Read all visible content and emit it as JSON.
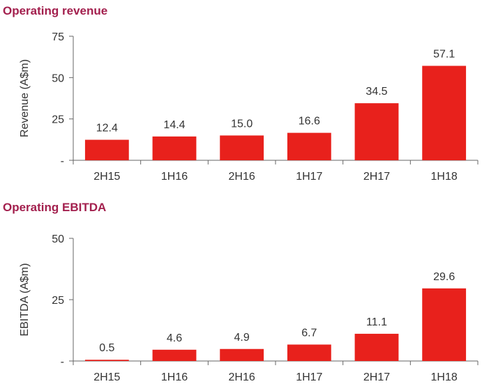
{
  "chart_data": [
    {
      "type": "bar",
      "title": "Operating revenue",
      "ylabel": "Revenue (A$m)",
      "xlabel": "",
      "categories": [
        "2H15",
        "1H16",
        "2H16",
        "1H17",
        "2H17",
        "1H18"
      ],
      "values": [
        12.4,
        14.4,
        15.0,
        16.6,
        34.5,
        57.1
      ],
      "value_labels": [
        "12.4",
        "14.4",
        "15.0",
        "16.6",
        "34.5",
        "57.1"
      ],
      "ylim": [
        0,
        75
      ],
      "yticks": [
        0,
        25,
        50,
        75
      ],
      "ytick_labels": [
        "-",
        "25",
        "50",
        "75"
      ],
      "bar_color": "#e8211c",
      "grid": false
    },
    {
      "type": "bar",
      "title": "Operating EBITDA",
      "ylabel": "EBITDA (A$m)",
      "xlabel": "",
      "categories": [
        "2H15",
        "1H16",
        "2H16",
        "1H17",
        "2H17",
        "1H18"
      ],
      "values": [
        0.5,
        4.6,
        4.9,
        6.7,
        11.1,
        29.6
      ],
      "value_labels": [
        "0.5",
        "4.6",
        "4.9",
        "6.7",
        "11.1",
        "29.6"
      ],
      "ylim": [
        0,
        50
      ],
      "yticks": [
        0,
        25,
        50
      ],
      "ytick_labels": [
        "-",
        "25",
        "50"
      ],
      "bar_color": "#e8211c",
      "grid": false
    }
  ],
  "colors": {
    "title": "#a3204e",
    "bar": "#e8211c",
    "axis": "#666666",
    "text": "#333333"
  }
}
